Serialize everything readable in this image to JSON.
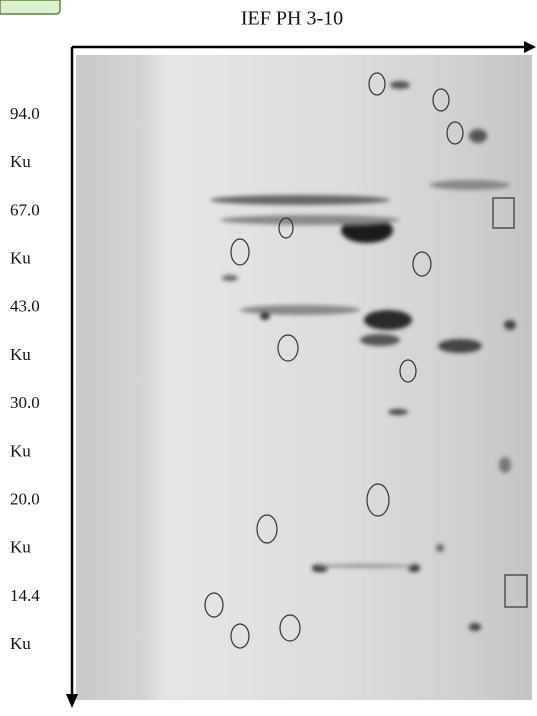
{
  "title": "IEF PH 3-10",
  "markers": [
    {
      "value": "94.0",
      "unit": "Ku"
    },
    {
      "value": "67.0",
      "unit": "Ku"
    },
    {
      "value": "43.0",
      "unit": "Ku"
    },
    {
      "value": "30.0",
      "unit": "Ku"
    },
    {
      "value": "20.0",
      "unit": "Ku"
    },
    {
      "value": "14.4",
      "unit": "Ku"
    }
  ]
}
